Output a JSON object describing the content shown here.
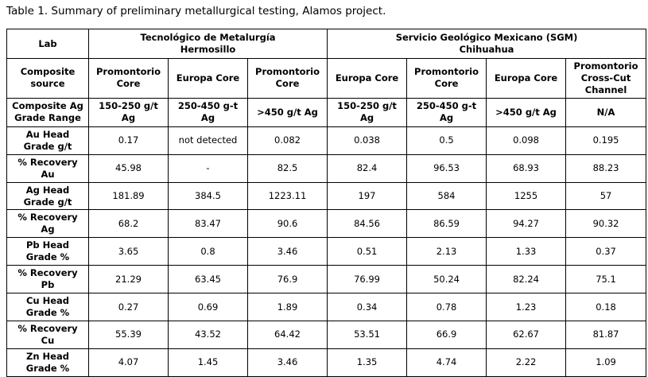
{
  "page": {
    "title": "Table 1. Summary of preliminary metallurgical testing, Alamos project."
  },
  "table": {
    "corner": {
      "lab": "Lab",
      "composite_source": "Composite\nsource",
      "grade_range": "Composite Ag\nGrade Range"
    },
    "labs": [
      {
        "name": "Tecnológico de Metalurgía\nHermosillo"
      },
      {
        "name": "Servicio Geológico Mexicano (SGM)\nChihuahua"
      }
    ],
    "composite_sources": [
      "Promontorio\nCore",
      "Europa Core",
      "Promontorio\nCore",
      "Europa Core",
      "Promontorio\nCore",
      "Europa Core",
      "Promontorio\nCross-Cut\nChannel"
    ],
    "grade_ranges": [
      "150-250 g/t\nAg",
      "250-450 g-t\nAg",
      ">450 g/t Ag",
      "150-250 g/t\nAg",
      "250-450 g-t\nAg",
      ">450 g/t Ag",
      "N/A"
    ],
    "rows": [
      {
        "label": "Au Head\nGrade g/t",
        "values": [
          "0.17",
          "not detected",
          "0.082",
          "0.038",
          "0.5",
          "0.098",
          "0.195"
        ]
      },
      {
        "label": "% Recovery\nAu",
        "values": [
          "45.98",
          "-",
          "82.5",
          "82.4",
          "96.53",
          "68.93",
          "88.23"
        ]
      },
      {
        "label": "Ag Head\nGrade g/t",
        "values": [
          "181.89",
          "384.5",
          "1223.11",
          "197",
          "584",
          "1255",
          "57"
        ]
      },
      {
        "label": "% Recovery\nAg",
        "values": [
          "68.2",
          "83.47",
          "90.6",
          "84.56",
          "86.59",
          "94.27",
          "90.32"
        ]
      },
      {
        "label": "Pb Head\nGrade %",
        "values": [
          "3.65",
          "0.8",
          "3.46",
          "0.51",
          "2.13",
          "1.33",
          "0.37"
        ]
      },
      {
        "label": "% Recovery\nPb",
        "values": [
          "21.29",
          "63.45",
          "76.9",
          "76.99",
          "50.24",
          "82.24",
          "75.1"
        ]
      },
      {
        "label": "Cu Head\nGrade %",
        "values": [
          "0.27",
          "0.69",
          "1.89",
          "0.34",
          "0.78",
          "1.23",
          "0.18"
        ]
      },
      {
        "label": "% Recovery\nCu",
        "values": [
          "55.39",
          "43.52",
          "64.42",
          "53.51",
          "66.9",
          "62.67",
          "81.87"
        ]
      },
      {
        "label": "Zn Head\nGrade %",
        "values": [
          "4.07",
          "1.45",
          "3.46",
          "1.35",
          "4.74",
          "2.22",
          "1.09"
        ]
      }
    ]
  }
}
